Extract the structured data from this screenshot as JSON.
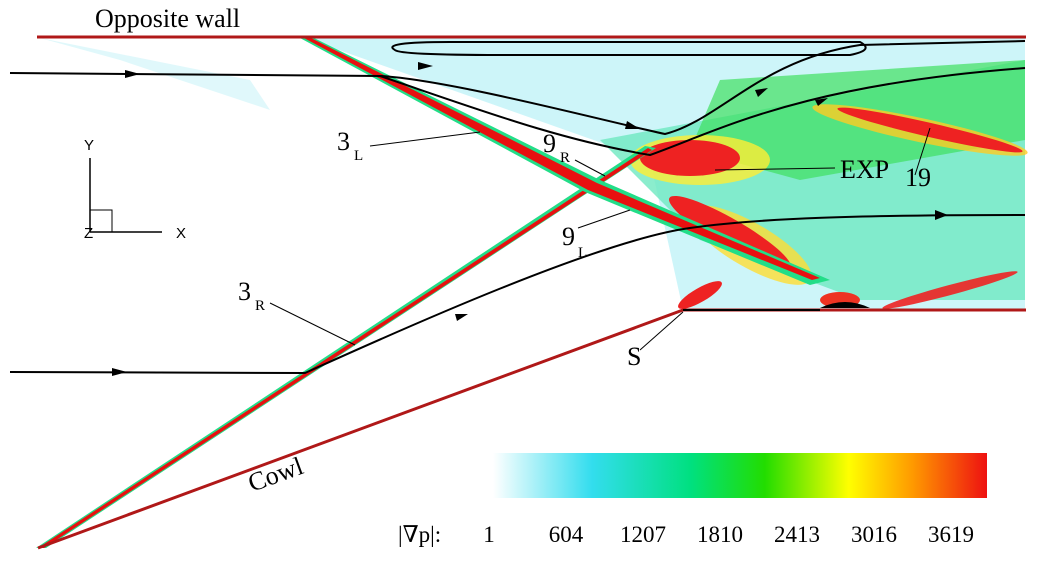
{
  "labels": {
    "opposite_wall": "Opposite wall",
    "cowl": "Cowl",
    "exp": "EXP",
    "n19": "19",
    "s": "S",
    "shock_3L": {
      "main": "3",
      "sub": "L"
    },
    "shock_3R": {
      "main": "3",
      "sub": "R"
    },
    "shock_9R": {
      "main": "9",
      "sub": "R"
    },
    "shock_9L": {
      "main": "9",
      "sub": "L"
    }
  },
  "axes": {
    "y": "Y",
    "x": "X",
    "z": "Z"
  },
  "colorbar": {
    "label": "|∇p|:",
    "ticks": [
      1,
      604,
      1207,
      1810,
      2413,
      3016,
      3619
    ]
  }
}
